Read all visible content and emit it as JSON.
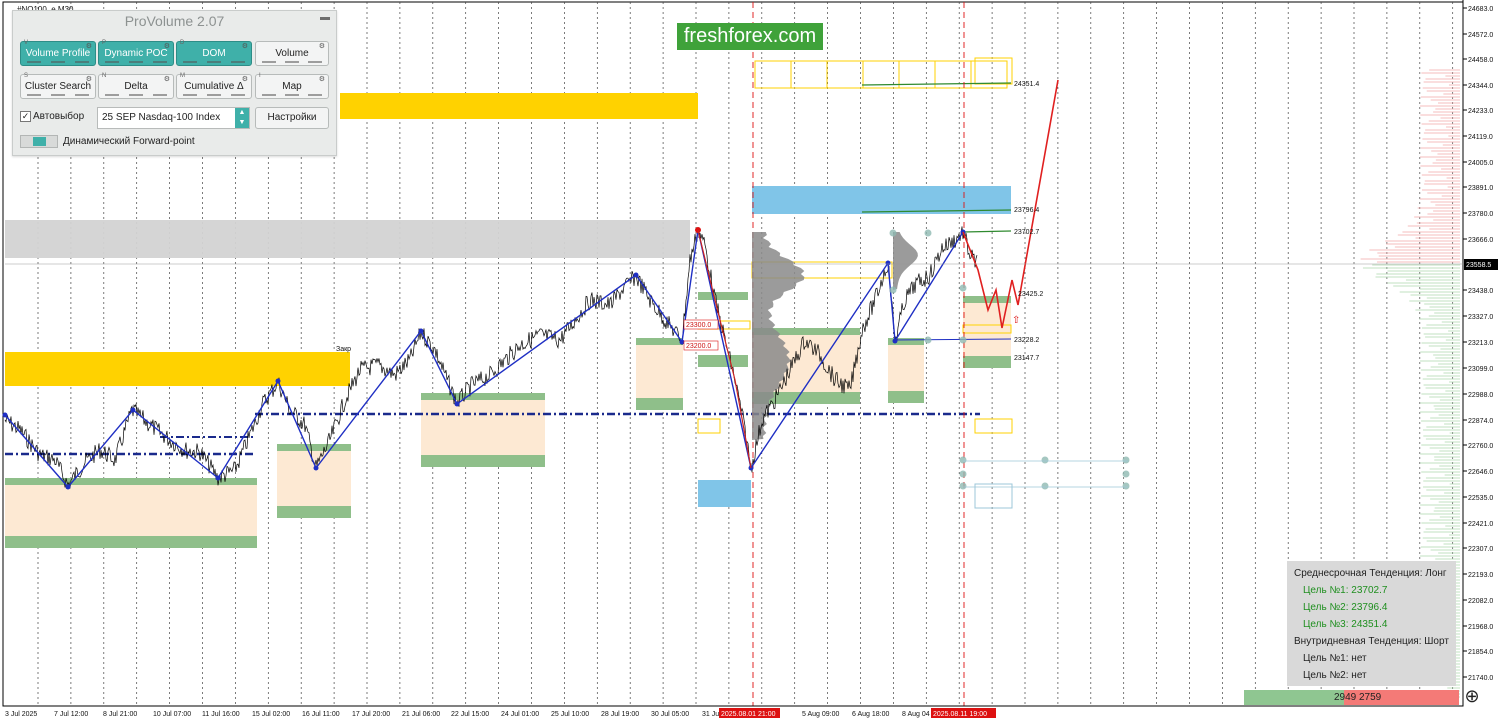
{
  "window": {
    "symbol": "#NQ100_e,M30"
  },
  "brand": {
    "text": "freshforex.com"
  },
  "panel": {
    "title": "ProVolume 2.07",
    "buttons": [
      {
        "label": "Volume Profile",
        "tag": "V",
        "active": true
      },
      {
        "label": "Dynamic POC",
        "tag": "P",
        "active": true
      },
      {
        "label": "DOM",
        "tag": "D",
        "active": true
      },
      {
        "label": "Volume",
        "tag": "",
        "active": false
      },
      {
        "label": "Cluster Search",
        "tag": "S",
        "active": false
      },
      {
        "label": "Delta",
        "tag": "N",
        "active": false
      },
      {
        "label": "Cumulative Δ",
        "tag": "M",
        "active": false
      },
      {
        "label": "Map",
        "tag": "I",
        "active": false
      }
    ],
    "autoselect_label": "Автовыбор",
    "instrument": "25 SEP Nasdaq-100 Index",
    "settings_label": "Настройки",
    "forward_point_label": "Динамический Forward-point"
  },
  "price_axis": {
    "ticks": [
      "24683.0",
      "24572.0",
      "24458.0",
      "24344.0",
      "24233.0",
      "24119.0",
      "24005.0",
      "23891.0",
      "23780.0",
      "23666.0",
      "23438.0",
      "23327.0",
      "23213.0",
      "23099.0",
      "22988.0",
      "22874.0",
      "22760.0",
      "22646.0",
      "22535.0",
      "22421.0",
      "22307.0",
      "22193.0",
      "22082.0",
      "21968.0",
      "21854.0",
      "21740.0"
    ],
    "current": "23558.5"
  },
  "time_axis": {
    "labels": [
      "3 Jul 2025",
      "7 Jul 12:00",
      "8 Jul 21:00",
      "10 Jul 07:00",
      "11 Jul 16:00",
      "15 Jul 02:00",
      "16 Jul 11:00",
      "17 Jul 20:00",
      "21 Jul 06:00",
      "22 Jul 15:00",
      "24 Jul 01:00",
      "25 Jul 10:00",
      "28 Jul 19:00",
      "30 Jul 05:00",
      "31 Jul",
      "5 Aug 09:00",
      "6 Aug 18:00",
      "8 Aug 04"
    ],
    "highlight": [
      "2025.08.01 21:00",
      "2025.08.11 19:00"
    ]
  },
  "levels": {
    "l1": "24351.4",
    "l2": "23796.4",
    "l3": "23702.7",
    "l4": "23425.2",
    "l5": "23228.2",
    "l6": "23147.7",
    "box1": "23300.0",
    "box2": "23200.0",
    "close_label": "Закр"
  },
  "trend": {
    "mid_title": "Среднесрочная Тенденция: Лонг",
    "mid_targets": [
      "Цель №1: 23702.7",
      "Цель №2: 23796.4",
      "Цель №3: 24351.4"
    ],
    "intra_title": "Внутридневная Тенденция: Шорт",
    "intra_targets": [
      "Цель №1: нет",
      "Цель №2: нет"
    ]
  },
  "balance": {
    "buy": "2949",
    "sell": "2759"
  },
  "colors": {
    "zone_yellow": "#ffd200",
    "zone_gray": "#d3d3d3",
    "zone_blue": "#80c5e8",
    "zigzag": "#1f2fc4",
    "forecast": "#e02020"
  }
}
